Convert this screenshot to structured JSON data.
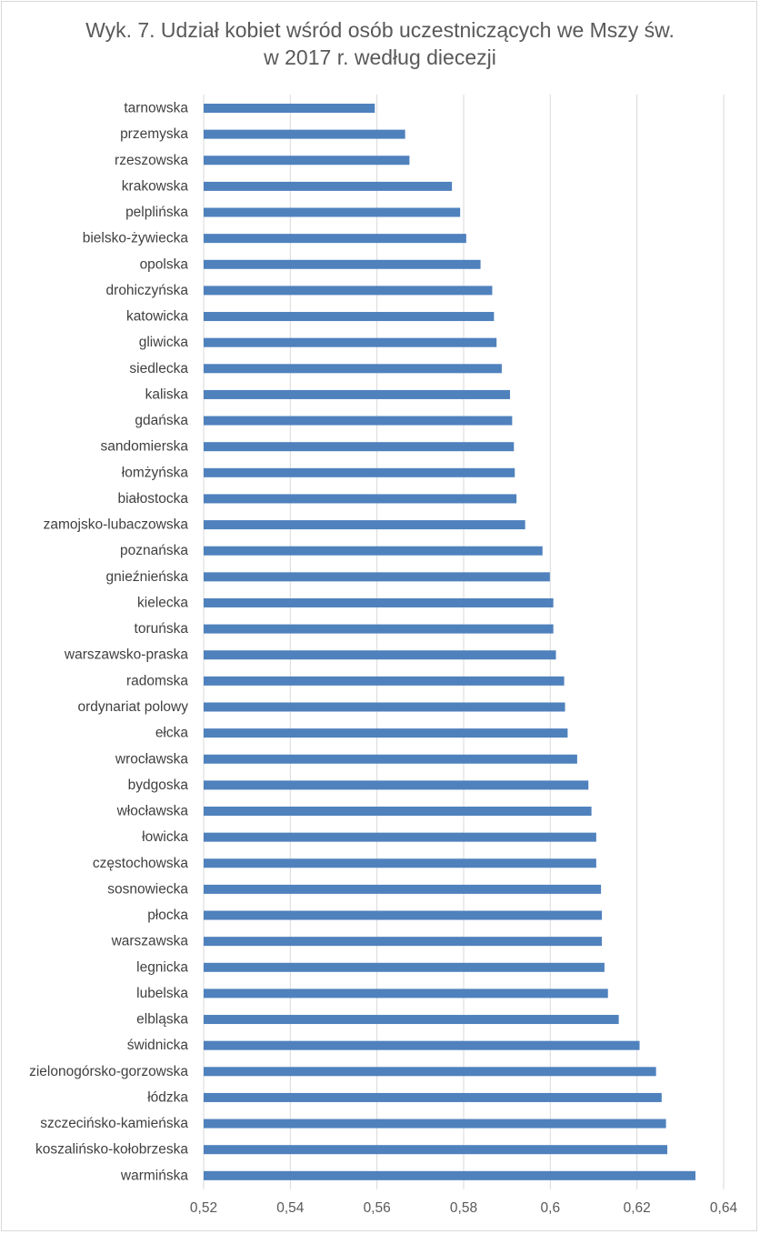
{
  "chart_data": {
    "type": "bar",
    "orientation": "horizontal",
    "title": "Wyk. 7. Udział kobiet wśród osób uczestniczących we Mszy św.",
    "subtitle": "w 2017 r. według diecezji",
    "xlabel": "",
    "ylabel": "",
    "xlim": [
      0.52,
      0.64
    ],
    "x_ticks": [
      "0,52",
      "0,54",
      "0,56",
      "0,58",
      "0,6",
      "0,62",
      "0,64"
    ],
    "x_tick_values": [
      0.52,
      0.54,
      0.56,
      0.58,
      0.6,
      0.62,
      0.64
    ],
    "grid": "vertical",
    "legend": "none",
    "bar_color": "#4f81bd",
    "grid_color": "#d9d9d9",
    "categories": [
      "tarnowska",
      "przemyska",
      "rzeszowska",
      "krakowska",
      "pelplińska",
      "bielsko-żywiecka",
      "opolska",
      "drohiczyńska",
      "katowicka",
      "gliwicka",
      "siedlecka",
      "kaliska",
      "gdańska",
      "sandomierska",
      "łomżyńska",
      "białostocka",
      "zamojsko-lubaczowska",
      "poznańska",
      "gnieźnieńska",
      "kielecka",
      "toruńska",
      "warszawsko-praska",
      "radomska",
      "ordynariat polowy",
      "ełcka",
      "wrocławska",
      "bydgoska",
      "włocławska",
      "łowicka",
      "częstochowska",
      "sosnowiecka",
      "płocka",
      "warszawska",
      "legnicka",
      "lubelska",
      "elbląska",
      "świdnicka",
      "zielonogórsko-gorzowska",
      "łódzka",
      "szczecińsko-kamieńska",
      "koszalińsko-kołobrzeska",
      "warmińska"
    ],
    "values": [
      0.5595,
      0.5665,
      0.5675,
      0.5773,
      0.5792,
      0.5806,
      0.5839,
      0.5866,
      0.587,
      0.5876,
      0.5888,
      0.5907,
      0.5912,
      0.5916,
      0.5918,
      0.5922,
      0.5942,
      0.5982,
      0.5999,
      0.6007,
      0.6007,
      0.6013,
      0.6032,
      0.6034,
      0.604,
      0.6062,
      0.6088,
      0.6095,
      0.6106,
      0.6106,
      0.6117,
      0.6119,
      0.6119,
      0.6125,
      0.6133,
      0.6158,
      0.6206,
      0.6244,
      0.6257,
      0.6267,
      0.627,
      0.6335
    ]
  }
}
